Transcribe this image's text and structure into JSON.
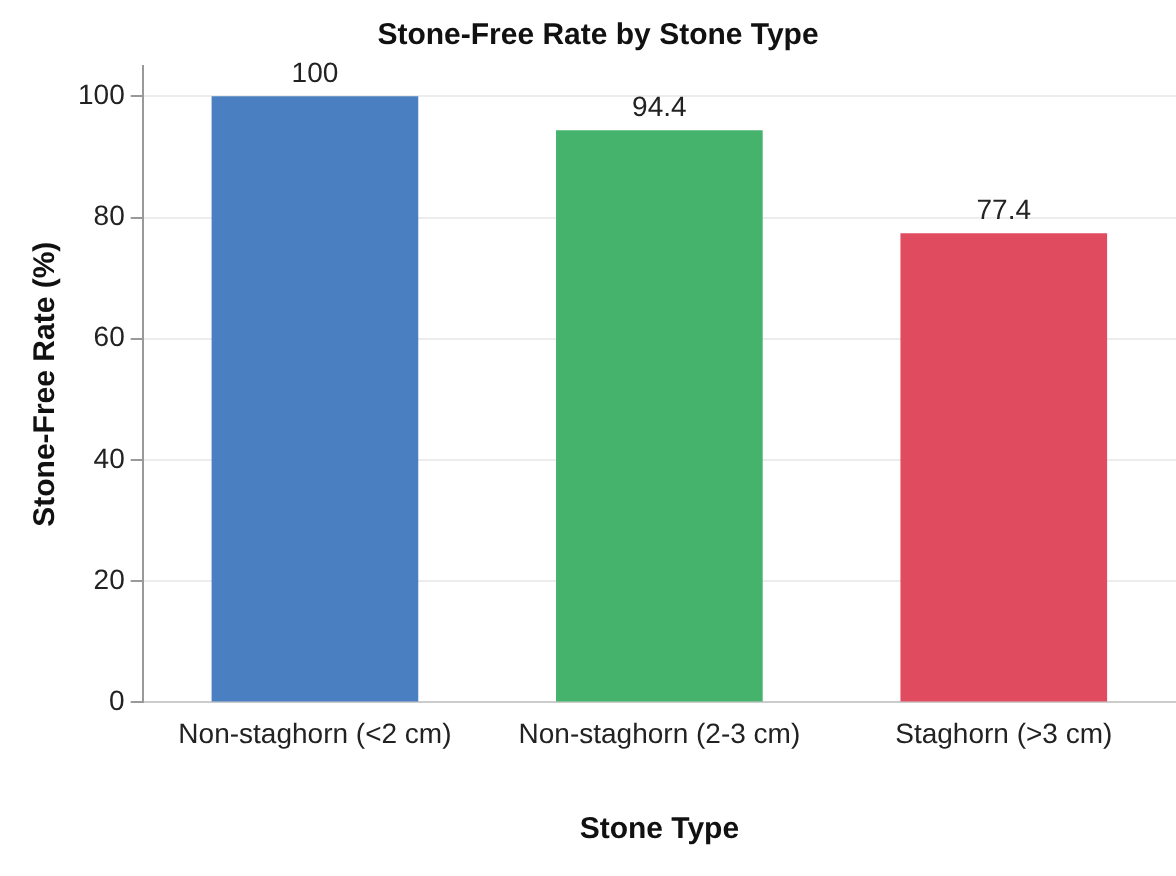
{
  "chart_data": {
    "type": "bar",
    "title": "Stone-Free Rate by Stone Type",
    "xlabel": "Stone Type",
    "ylabel": "Stone-Free Rate (%)",
    "categories": [
      "Non-staghorn (<2 cm)",
      "Non-staghorn (2-3 cm)",
      "Staghorn (>3 cm)"
    ],
    "values": [
      100,
      94.4,
      77.4
    ],
    "colors": [
      "#4a7fc1",
      "#45b36b",
      "#e04b5f"
    ],
    "ylim": [
      0,
      105
    ],
    "yticks": [
      0,
      20,
      40,
      60,
      80,
      100
    ],
    "grid": "y",
    "data_labels": true,
    "legend": false
  }
}
